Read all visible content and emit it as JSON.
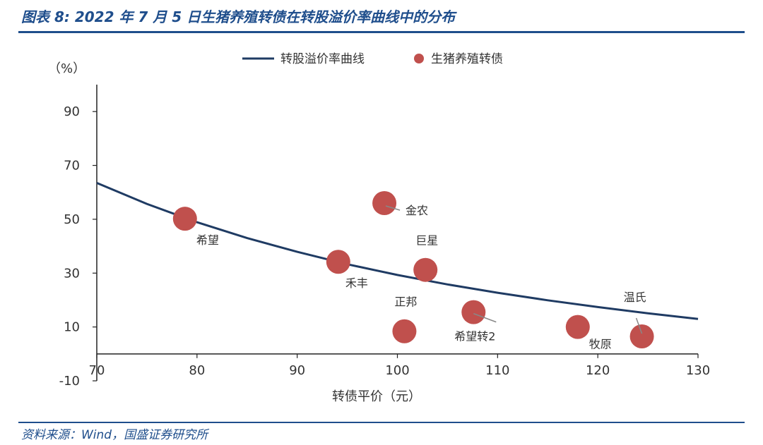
{
  "header": {
    "title": "图表 8:  2022 年 7 月 5 日生猪养殖转债在转股溢价率曲线中的分布"
  },
  "footer": {
    "source": "资料来源：Wind，国盛证券研究所"
  },
  "chart_data": {
    "type": "scatter",
    "title": "",
    "xlabel": "转债平价（元）",
    "ylabel": "（%）",
    "xlim": [
      70,
      130
    ],
    "ylim": [
      -10,
      100
    ],
    "x_ticks": [
      "70",
      "80",
      "90",
      "100",
      "110",
      "120",
      "130"
    ],
    "y_ticks": [
      "-10",
      "10",
      "30",
      "50",
      "70",
      "90"
    ],
    "grid": false,
    "legend": {
      "position": "top",
      "entries": [
        "转股溢价率曲线",
        "生猪养殖转债"
      ]
    },
    "curve": {
      "name": "转股溢价率曲线",
      "color": "#1f3b63",
      "x": [
        70,
        75,
        80,
        85,
        90,
        95,
        100,
        105,
        110,
        115,
        120,
        125,
        130
      ],
      "y": [
        63.5,
        55.7,
        48.9,
        43.0,
        37.9,
        33.3,
        29.3,
        25.8,
        22.7,
        19.9,
        17.4,
        15.1,
        13.0
      ]
    },
    "points": {
      "name": "生猪养殖转债",
      "color": "#c0504d",
      "items": [
        {
          "label": "希望",
          "x": 78.8,
          "y": 50.2
        },
        {
          "label": "金农",
          "x": 98.7,
          "y": 56.0
        },
        {
          "label": "禾丰",
          "x": 94.1,
          "y": 34.2
        },
        {
          "label": "巨星",
          "x": 102.8,
          "y": 31.2
        },
        {
          "label": "正邦",
          "x": 100.7,
          "y": 8.4
        },
        {
          "label": "希望转2",
          "x": 107.6,
          "y": 15.5
        },
        {
          "label": "牧原",
          "x": 118.0,
          "y": 10.0
        },
        {
          "label": "温氏",
          "x": 124.4,
          "y": 6.5
        }
      ]
    }
  }
}
